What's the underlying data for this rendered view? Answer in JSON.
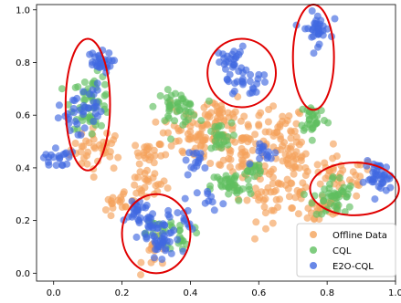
{
  "chart_data": {
    "type": "scatter",
    "title": "",
    "xlabel": "",
    "ylabel": "",
    "xlim": [
      -0.05,
      1.0
    ],
    "ylim": [
      -0.03,
      1.02
    ],
    "xticks": [
      "0.0",
      "0.2",
      "0.4",
      "0.6",
      "0.8",
      "1.0"
    ],
    "yticks": [
      "0.0",
      "0.2",
      "0.4",
      "0.6",
      "0.8",
      "1.0"
    ],
    "grid": false,
    "legend_position": "lower-right",
    "series": [
      {
        "name": "Offline Data",
        "color": "#f4a25a",
        "clusters": [
          {
            "cx": 0.13,
            "cy": 0.47,
            "sx": 0.04,
            "sy": 0.04,
            "n": 40
          },
          {
            "cx": 0.28,
            "cy": 0.46,
            "sx": 0.02,
            "sy": 0.02,
            "n": 20
          },
          {
            "cx": 0.27,
            "cy": 0.34,
            "sx": 0.03,
            "sy": 0.03,
            "n": 25
          },
          {
            "cx": 0.39,
            "cy": 0.52,
            "sx": 0.04,
            "sy": 0.05,
            "n": 45
          },
          {
            "cx": 0.48,
            "cy": 0.58,
            "sx": 0.04,
            "sy": 0.06,
            "n": 60
          },
          {
            "cx": 0.56,
            "cy": 0.46,
            "sx": 0.05,
            "sy": 0.06,
            "n": 60
          },
          {
            "cx": 0.64,
            "cy": 0.3,
            "sx": 0.05,
            "sy": 0.05,
            "n": 40
          },
          {
            "cx": 0.7,
            "cy": 0.4,
            "sx": 0.04,
            "sy": 0.05,
            "n": 45
          },
          {
            "cx": 0.78,
            "cy": 0.25,
            "sx": 0.04,
            "sy": 0.04,
            "n": 30
          },
          {
            "cx": 0.84,
            "cy": 0.36,
            "sx": 0.05,
            "sy": 0.04,
            "n": 35
          },
          {
            "cx": 0.66,
            "cy": 0.55,
            "sx": 0.04,
            "sy": 0.04,
            "n": 30
          },
          {
            "cx": 0.3,
            "cy": 0.07,
            "sx": 0.02,
            "sy": 0.03,
            "n": 15
          },
          {
            "cx": 0.2,
            "cy": 0.27,
            "sx": 0.03,
            "sy": 0.03,
            "n": 20
          }
        ]
      },
      {
        "name": "CQL",
        "color": "#5fbf5f",
        "clusters": [
          {
            "cx": 0.11,
            "cy": 0.65,
            "sx": 0.03,
            "sy": 0.05,
            "n": 55
          },
          {
            "cx": 0.36,
            "cy": 0.63,
            "sx": 0.03,
            "sy": 0.03,
            "n": 45
          },
          {
            "cx": 0.48,
            "cy": 0.51,
            "sx": 0.02,
            "sy": 0.03,
            "n": 25
          },
          {
            "cx": 0.52,
            "cy": 0.33,
            "sx": 0.03,
            "sy": 0.03,
            "n": 40
          },
          {
            "cx": 0.76,
            "cy": 0.59,
            "sx": 0.02,
            "sy": 0.03,
            "n": 30
          },
          {
            "cx": 0.82,
            "cy": 0.29,
            "sx": 0.03,
            "sy": 0.04,
            "n": 45
          },
          {
            "cx": 0.37,
            "cy": 0.15,
            "sx": 0.02,
            "sy": 0.03,
            "n": 20
          },
          {
            "cx": 0.29,
            "cy": 0.17,
            "sx": 0.02,
            "sy": 0.02,
            "n": 10
          },
          {
            "cx": 0.58,
            "cy": 0.39,
            "sx": 0.02,
            "sy": 0.02,
            "n": 15
          }
        ]
      },
      {
        "name": "E2O-CQL",
        "color": "#4169e1",
        "clusters": [
          {
            "cx": 0.13,
            "cy": 0.8,
            "sx": 0.02,
            "sy": 0.02,
            "n": 30
          },
          {
            "cx": 0.05,
            "cy": 0.58,
            "sx": 0.02,
            "sy": 0.03,
            "n": 15
          },
          {
            "cx": 0.01,
            "cy": 0.44,
            "sx": 0.02,
            "sy": 0.02,
            "n": 20
          },
          {
            "cx": 0.1,
            "cy": 0.64,
            "sx": 0.02,
            "sy": 0.04,
            "n": 25
          },
          {
            "cx": 0.31,
            "cy": 0.13,
            "sx": 0.03,
            "sy": 0.05,
            "n": 55
          },
          {
            "cx": 0.25,
            "cy": 0.24,
            "sx": 0.02,
            "sy": 0.03,
            "n": 25
          },
          {
            "cx": 0.52,
            "cy": 0.8,
            "sx": 0.02,
            "sy": 0.03,
            "n": 30
          },
          {
            "cx": 0.57,
            "cy": 0.72,
            "sx": 0.03,
            "sy": 0.02,
            "n": 20
          },
          {
            "cx": 0.77,
            "cy": 0.93,
            "sx": 0.02,
            "sy": 0.03,
            "n": 35
          },
          {
            "cx": 0.95,
            "cy": 0.36,
            "sx": 0.02,
            "sy": 0.03,
            "n": 40
          },
          {
            "cx": 0.42,
            "cy": 0.43,
            "sx": 0.02,
            "sy": 0.02,
            "n": 15
          },
          {
            "cx": 0.63,
            "cy": 0.45,
            "sx": 0.02,
            "sy": 0.02,
            "n": 15
          },
          {
            "cx": 0.46,
            "cy": 0.28,
            "sx": 0.02,
            "sy": 0.02,
            "n": 10
          },
          {
            "cx": 0.38,
            "cy": 0.2,
            "sx": 0.01,
            "sy": 0.03,
            "n": 10
          }
        ]
      }
    ],
    "annotations": [
      {
        "type": "ellipse",
        "color": "#e00000",
        "cx": 0.1,
        "cy": 0.64,
        "rx": 0.065,
        "ry": 0.25
      },
      {
        "type": "ellipse",
        "color": "#e00000",
        "cx": 0.3,
        "cy": 0.15,
        "rx": 0.1,
        "ry": 0.15
      },
      {
        "type": "ellipse",
        "color": "#e00000",
        "cx": 0.55,
        "cy": 0.76,
        "rx": 0.1,
        "ry": 0.13
      },
      {
        "type": "ellipse",
        "color": "#e00000",
        "cx": 0.76,
        "cy": 0.82,
        "rx": 0.06,
        "ry": 0.2
      },
      {
        "type": "ellipse",
        "color": "#e00000",
        "cx": 0.88,
        "cy": 0.32,
        "rx": 0.13,
        "ry": 0.1
      }
    ]
  }
}
